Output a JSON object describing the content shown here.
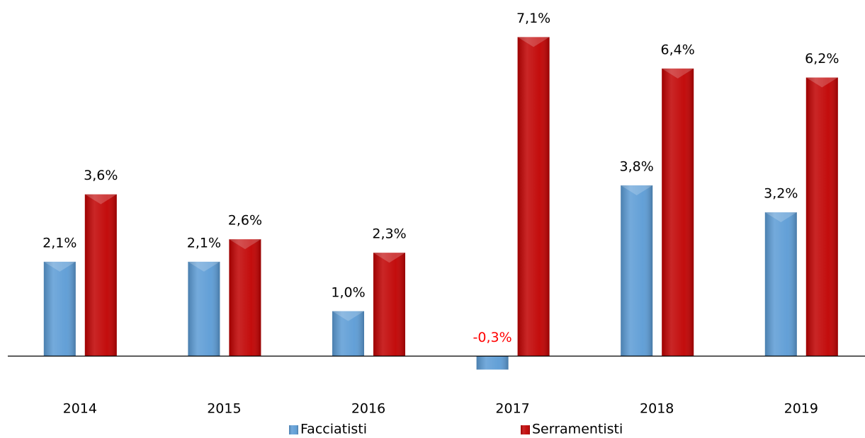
{
  "chart_data": {
    "type": "bar",
    "categories": [
      "2014",
      "2015",
      "2016",
      "2017",
      "2018",
      "2019"
    ],
    "series": [
      {
        "name": "Facciatisti",
        "color": "#5b9bd5",
        "values": [
          2.1,
          2.1,
          1.0,
          -0.3,
          3.8,
          3.2
        ],
        "value_labels": [
          "2,1%",
          "2,1%",
          "1,0%",
          "-0,3%",
          "3,8%",
          "3,2%"
        ]
      },
      {
        "name": "Serramentisti",
        "color": "#c00000",
        "values": [
          3.6,
          2.6,
          2.3,
          7.1,
          6.4,
          6.2
        ],
        "value_labels": [
          "3,6%",
          "2,6%",
          "2,3%",
          "7,1%",
          "6,4%",
          "6,2%"
        ]
      }
    ],
    "negative_label_color": "#ff0000",
    "ylim": [
      -0.5,
      7.5
    ],
    "legend": "bottom"
  }
}
